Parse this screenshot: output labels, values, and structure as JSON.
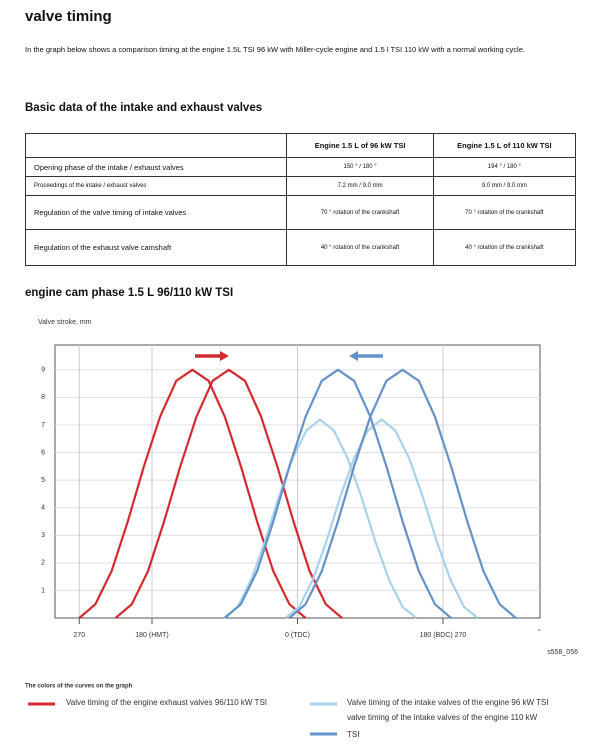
{
  "header": {
    "title": "valve timing",
    "intro": "In the graph below shows a comparison timing at the engine 1.5L TSI 96 kW with Miller-cycle engine and 1.5 l TSI 110 kW with a normal working cycle."
  },
  "table": {
    "heading": "Basic data of the intake and exhaust valves",
    "columns": [
      "Engine 1.5 L of 96 kW TSI",
      "Engine 1.5 L of 110 kW TSI"
    ],
    "rows": [
      [
        "Opening phase of the intake / exhaust valves",
        "150 ° / 180 °",
        "194 ° / 180 °"
      ],
      [
        "Proceedings of the intake / exhaust valves",
        "7.2 mm / 9.0 mm",
        "9.0 mm / 9.0 mm"
      ],
      [
        "Regulation of the valve timing of intake valves",
        "70 ° rotation of the crankshaft",
        "70 ° rotation of the crankshaft"
      ],
      [
        "Regulation of the exhaust valve camshaft",
        "40 ° rotation of the crankshaft",
        "40 ° rotation of the crankshaft"
      ]
    ]
  },
  "chart_data": {
    "type": "line",
    "title": "engine cam phase 1.5 L 96/110 kW TSI",
    "y_label": "Valve stroke, mm",
    "x_unit": "°",
    "figure_id": "s558_056",
    "xlim": [
      -300,
      300
    ],
    "xticks": [
      {
        "value": -270,
        "label": "270"
      },
      {
        "value": -180,
        "label": "180 (HMT)"
      },
      {
        "value": 0,
        "label": "0 (TDC)"
      },
      {
        "value": 180,
        "label": "180 (BDC) 270"
      }
    ],
    "ylim": [
      0,
      9.9
    ],
    "yticks": [
      1,
      2,
      3,
      4,
      5,
      6,
      7,
      8,
      9
    ],
    "grid": true,
    "series": [
      {
        "color": "#d42a2f",
        "x": [
          -270,
          -250,
          -230,
          -210,
          -190,
          -170,
          -150,
          -130,
          -110,
          -90,
          -70,
          -50,
          -30,
          -10,
          10
        ],
        "values": [
          0,
          0.5,
          1.7,
          3.5,
          5.5,
          7.3,
          8.6,
          9,
          8.6,
          7.3,
          5.5,
          3.5,
          1.7,
          0.5,
          0
        ]
      },
      {
        "color": "#d42a2f",
        "x": [
          -225,
          -205,
          -185,
          -165,
          -145,
          -125,
          -105,
          -85,
          -65,
          -45,
          -25,
          -5,
          15,
          35,
          55
        ],
        "values": [
          0,
          0.5,
          1.7,
          3.5,
          5.5,
          7.3,
          8.6,
          9,
          8.6,
          7.3,
          5.5,
          3.5,
          1.7,
          0.5,
          0
        ]
      },
      {
        "color": "#a8d2ec",
        "x": [
          -91,
          -74,
          -57,
          -40,
          -23,
          -6,
          11,
          28,
          45,
          62,
          79,
          96,
          113,
          130,
          147
        ],
        "values": [
          0,
          0.4,
          1.4,
          2.8,
          4.4,
          5.8,
          6.8,
          7.2,
          6.8,
          5.8,
          4.4,
          2.8,
          1.4,
          0.4,
          0
        ]
      },
      {
        "color": "#a8d2ec",
        "x": [
          -15,
          2,
          19,
          36,
          53,
          70,
          87,
          104,
          121,
          138,
          155,
          172,
          189,
          206,
          223
        ],
        "values": [
          0,
          0.4,
          1.4,
          2.8,
          4.4,
          5.8,
          6.8,
          7.2,
          6.8,
          5.8,
          4.4,
          2.8,
          1.4,
          0.4,
          0
        ]
      },
      {
        "color": "#6393c6",
        "x": [
          -90,
          -70,
          -50,
          -30,
          -10,
          10,
          30,
          50,
          70,
          90,
          110,
          130,
          150,
          170,
          190
        ],
        "values": [
          0,
          0.5,
          1.7,
          3.5,
          5.5,
          7.3,
          8.6,
          9,
          8.6,
          7.3,
          5.5,
          3.5,
          1.7,
          0.5,
          0
        ]
      },
      {
        "color": "#6393c6",
        "x": [
          -10,
          10,
          30,
          50,
          70,
          90,
          110,
          130,
          150,
          170,
          190,
          210,
          230,
          250,
          270
        ],
        "values": [
          0,
          0.5,
          1.7,
          3.5,
          5.5,
          7.3,
          8.6,
          9,
          8.6,
          7.3,
          5.5,
          3.5,
          1.7,
          0.5,
          0
        ]
      }
    ],
    "legend": {
      "title": "The colors of the curves on the graph",
      "entries": [
        {
          "color": "#d42a2f",
          "lines": [
            "Valve timing of the engine exhaust valves 96/110 kW TSI"
          ]
        },
        {
          "color": "#a8d2ec",
          "lines": [
            "Valve timing of the intake valves of the engine 96 kW TSI"
          ]
        },
        {
          "color": "#6393c6",
          "lines": [
            "valve timing of the intake valves of the engine 110 kW",
            "TSI"
          ]
        }
      ]
    }
  }
}
